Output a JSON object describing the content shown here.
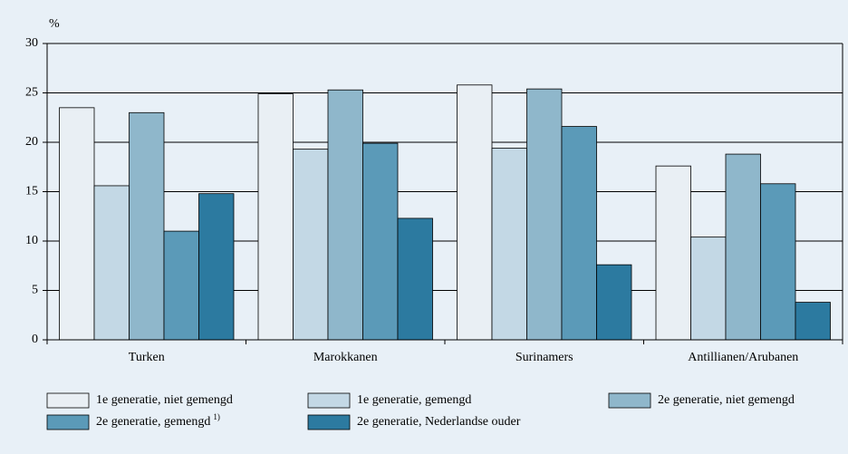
{
  "chart_data": {
    "type": "bar",
    "y_label": "%",
    "categories": [
      "Turken",
      "Marokkanen",
      "Surinamers",
      "Antillianen/Arubanen"
    ],
    "series": [
      {
        "name": "1e generatie, niet gemengd",
        "color": "#e9eff4",
        "values": [
          23.5,
          24.9,
          25.8,
          17.6
        ]
      },
      {
        "name": "1e generatie, gemengd",
        "color": "#c3d8e5",
        "values": [
          15.6,
          19.3,
          19.4,
          10.4
        ]
      },
      {
        "name": "2e generatie, niet gemengd",
        "color": "#8fb7cb",
        "values": [
          23.0,
          25.3,
          25.4,
          18.8
        ]
      },
      {
        "name": "2e generatie, gemengd",
        "footnote_marker": "1)",
        "color": "#5b9ab8",
        "values": [
          11.0,
          19.9,
          21.6,
          15.8
        ]
      },
      {
        "name": "2e generatie, Nederlandse ouder",
        "color": "#2c7aa0",
        "values": [
          14.8,
          12.3,
          7.6,
          3.8
        ]
      }
    ],
    "ylim": [
      0,
      30
    ],
    "yticks": [
      0,
      5,
      10,
      15,
      20,
      25,
      30
    ],
    "grid": true
  }
}
